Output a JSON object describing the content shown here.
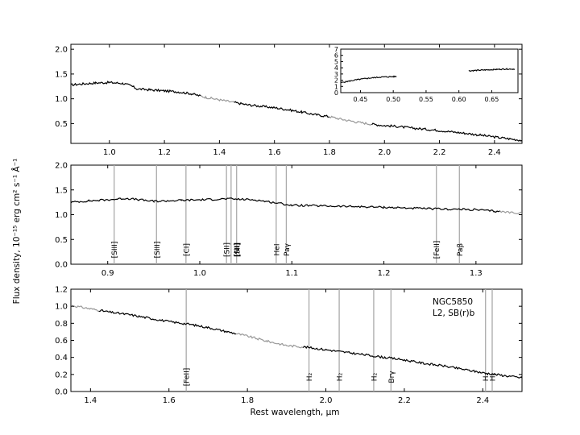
{
  "figure": {
    "xlabel": "Rest wavelength, μm",
    "ylabel": "Flux density, 10⁻¹⁵ erg cm² s⁻¹ Å⁻¹",
    "galaxy_name": "NGC5850",
    "galaxy_class": "L2,  SB(r)b"
  },
  "colors": {
    "spectrum": "#000000",
    "telluric": "#999999",
    "line_marker": "#aaaaaa"
  },
  "chart_data": [
    {
      "type": "line",
      "panel": "top-full-spectrum",
      "xlim": [
        0.86,
        2.5
      ],
      "ylim": [
        0.1,
        2.1
      ],
      "xticks": [
        "1.0",
        "1.2",
        "1.4",
        "1.6",
        "1.8",
        "2.0",
        "2.2",
        "2.4"
      ],
      "yticks": [
        "0.5",
        "1.0",
        "1.5",
        "2.0"
      ],
      "series": [
        {
          "x": [
            0.86,
            0.9,
            0.95,
            1.0,
            1.05,
            1.08,
            1.1,
            1.15,
            1.2,
            1.25,
            1.3,
            1.35,
            1.4,
            1.45,
            1.5,
            1.55,
            1.6,
            1.65,
            1.7,
            1.75,
            1.8,
            1.85,
            1.9,
            1.95,
            2.0,
            2.05,
            2.1,
            2.2,
            2.3,
            2.4,
            2.5
          ],
          "y": [
            1.28,
            1.3,
            1.32,
            1.33,
            1.31,
            1.26,
            1.2,
            1.18,
            1.16,
            1.14,
            1.1,
            1.03,
            0.98,
            0.93,
            0.88,
            0.85,
            0.82,
            0.78,
            0.73,
            0.68,
            0.64,
            0.58,
            0.53,
            0.49,
            0.46,
            0.44,
            0.41,
            0.36,
            0.3,
            0.23,
            0.16
          ]
        }
      ],
      "telluric_ranges": [
        [
          1.33,
          1.45
        ],
        [
          1.8,
          1.95
        ]
      ],
      "inset": {
        "xlim": [
          0.42,
          0.69
        ],
        "ylim": [
          0,
          7
        ],
        "xticks": [
          "0.45",
          "0.50",
          "0.55",
          "0.60",
          "0.65"
        ],
        "yticks": [
          "0",
          "1",
          "2",
          "3",
          "4",
          "5",
          "6",
          "7"
        ],
        "segments": [
          {
            "x": [
              0.42,
              0.44,
              0.46,
              0.48,
              0.505
            ],
            "y": [
              1.6,
              2.0,
              2.3,
              2.5,
              2.6
            ]
          },
          {
            "x": [
              0.615,
              0.63,
              0.65,
              0.67,
              0.685
            ],
            "y": [
              3.5,
              3.6,
              3.7,
              3.8,
              3.8
            ]
          }
        ]
      }
    },
    {
      "type": "line",
      "panel": "middle-zoom-J",
      "xlim": [
        0.86,
        1.35
      ],
      "ylim": [
        0.0,
        2.0
      ],
      "xticks": [
        "0.9",
        "1.0",
        "1.1",
        "1.2",
        "1.3"
      ],
      "yticks": [
        "0.0",
        "0.5",
        "1.0",
        "1.5",
        "2.0"
      ],
      "series": [
        {
          "x": [
            0.86,
            0.88,
            0.9,
            0.92,
            0.95,
            0.98,
            1.0,
            1.03,
            1.06,
            1.09,
            1.1,
            1.15,
            1.2,
            1.25,
            1.3,
            1.32,
            1.35
          ],
          "y": [
            1.25,
            1.28,
            1.3,
            1.33,
            1.27,
            1.29,
            1.3,
            1.32,
            1.3,
            1.22,
            1.19,
            1.17,
            1.15,
            1.12,
            1.1,
            1.07,
            1.03
          ]
        }
      ],
      "telluric_ranges": [
        [
          1.325,
          1.35
        ]
      ],
      "line_markers": [
        {
          "x": 0.907,
          "label": "[SIII]"
        },
        {
          "x": 0.953,
          "label": "[SIII]"
        },
        {
          "x": 0.985,
          "label": "[CI]"
        },
        {
          "x": 1.029,
          "label": "[SII]"
        },
        {
          "x": 1.034,
          "label": "[SII]"
        },
        {
          "x": 1.04,
          "label": "[NI]"
        },
        {
          "x": 1.083,
          "label": "HeI"
        },
        {
          "x": 1.094,
          "label": "Paγ"
        },
        {
          "x": 1.257,
          "label": "[FeII]"
        },
        {
          "x": 1.282,
          "label": "Paβ"
        }
      ]
    },
    {
      "type": "line",
      "panel": "bottom-zoom-HK",
      "xlim": [
        1.35,
        2.5
      ],
      "ylim": [
        0.0,
        1.2
      ],
      "xticks": [
        "1.4",
        "1.6",
        "1.8",
        "2.0",
        "2.2",
        "2.4"
      ],
      "yticks": [
        "0.0",
        "0.2",
        "0.4",
        "0.6",
        "0.8",
        "1.0",
        "1.2"
      ],
      "series": [
        {
          "x": [
            1.35,
            1.4,
            1.45,
            1.5,
            1.55,
            1.6,
            1.65,
            1.7,
            1.75,
            1.8,
            1.85,
            1.9,
            1.95,
            2.0,
            2.05,
            2.1,
            2.15,
            2.2,
            2.25,
            2.3,
            2.35,
            2.4,
            2.45,
            2.5
          ],
          "y": [
            1.01,
            0.97,
            0.93,
            0.9,
            0.86,
            0.82,
            0.79,
            0.75,
            0.7,
            0.65,
            0.59,
            0.54,
            0.52,
            0.49,
            0.46,
            0.43,
            0.4,
            0.37,
            0.33,
            0.3,
            0.26,
            0.22,
            0.19,
            0.16
          ]
        }
      ],
      "telluric_ranges": [
        [
          1.35,
          1.42
        ],
        [
          1.77,
          1.94
        ]
      ],
      "line_markers": [
        {
          "x": 1.644,
          "label": "[FeII]"
        },
        {
          "x": 1.957,
          "label": "H₂"
        },
        {
          "x": 2.034,
          "label": "H₂"
        },
        {
          "x": 2.122,
          "label": "H₂"
        },
        {
          "x": 2.166,
          "label": "Brγ"
        },
        {
          "x": 2.407,
          "label": "H₂"
        },
        {
          "x": 2.424,
          "label": "H₂"
        }
      ]
    }
  ]
}
